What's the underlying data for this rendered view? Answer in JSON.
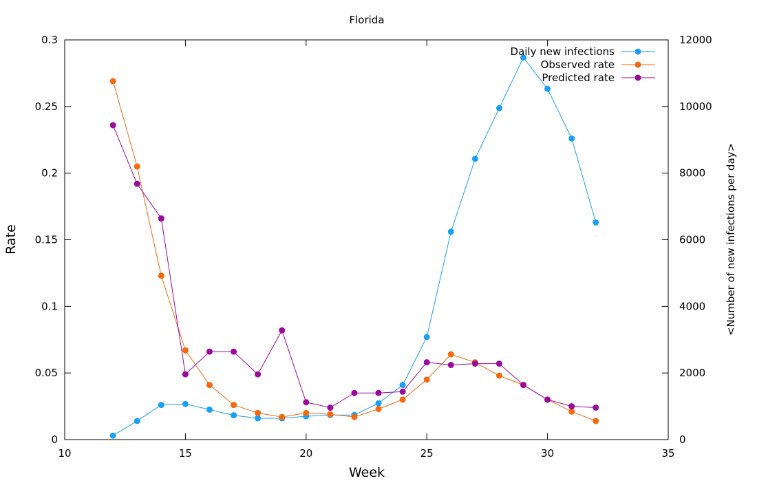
{
  "chart_data": {
    "type": "line",
    "title": "Florida",
    "xlabel": "Week",
    "ylabel": "Rate",
    "y2label": "<Number of new infections per day>",
    "xlim": [
      10,
      35
    ],
    "ylim": [
      0,
      0.3
    ],
    "y2lim": [
      0,
      12000
    ],
    "x_ticks": [
      "10",
      "15",
      "20",
      "25",
      "30",
      "35"
    ],
    "y_ticks": [
      "0",
      "0.05",
      "0.1",
      "0.15",
      "0.2",
      "0.25",
      "0.3"
    ],
    "y2_ticks": [
      "0",
      "2000",
      "4000",
      "6000",
      "8000",
      "10000",
      "12000"
    ],
    "grid": false,
    "legend_position": "top-right",
    "series": [
      {
        "name": "Daily new infections",
        "axis": "y2",
        "color": "#1a9ff2",
        "x": [
          12,
          13,
          14,
          15,
          16,
          17,
          18,
          19,
          20,
          21,
          22,
          23,
          24,
          25,
          26,
          27,
          28,
          29,
          30,
          31,
          32
        ],
        "values": [
          120,
          560,
          1040,
          1070,
          900,
          730,
          640,
          640,
          700,
          740,
          740,
          1090,
          1640,
          3080,
          6240,
          8430,
          9950,
          11470,
          10530,
          9040,
          6520
        ]
      },
      {
        "name": "Observed rate",
        "axis": "y",
        "color": "#f26a0f",
        "x": [
          12,
          13,
          14,
          15,
          16,
          17,
          18,
          19,
          20,
          21,
          22,
          23,
          24,
          25,
          26,
          27,
          28,
          29,
          30,
          31,
          32
        ],
        "values": [
          0.269,
          0.205,
          0.123,
          0.067,
          0.041,
          0.026,
          0.02,
          0.017,
          0.02,
          0.019,
          0.017,
          0.023,
          0.03,
          0.045,
          0.064,
          0.058,
          0.048,
          0.041,
          0.03,
          0.021,
          0.014
        ]
      },
      {
        "name": "Predicted rate",
        "axis": "y",
        "color": "#9a0a9a",
        "x": [
          12,
          13,
          14,
          15,
          16,
          17,
          18,
          19,
          20,
          21,
          22,
          23,
          24,
          25,
          26,
          27,
          28,
          29,
          30,
          31,
          32
        ],
        "values": [
          0.236,
          0.192,
          0.166,
          0.049,
          0.066,
          0.066,
          0.049,
          0.082,
          0.028,
          0.024,
          0.035,
          0.035,
          0.036,
          0.058,
          0.056,
          0.057,
          0.057,
          0.041,
          0.03,
          0.025,
          0.024
        ]
      }
    ]
  }
}
